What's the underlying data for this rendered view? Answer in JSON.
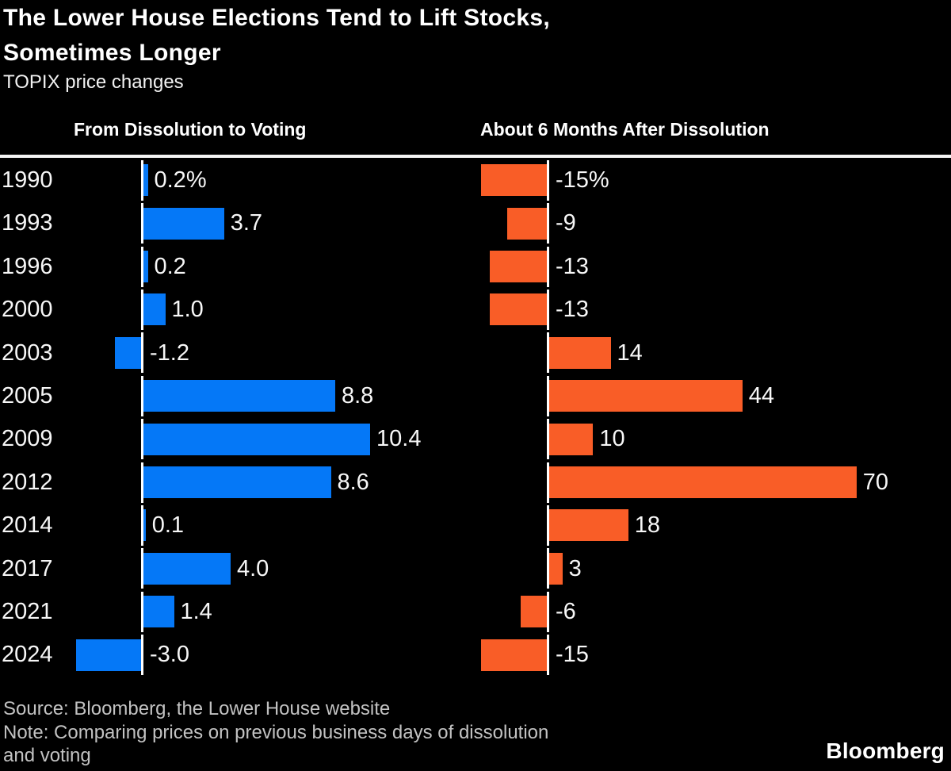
{
  "header": {
    "title_lines": [
      "The Lower House Elections Tend to Lift Stocks,",
      "Sometimes Longer"
    ],
    "subtitle": "TOPIX price changes"
  },
  "chart_data": {
    "type": "bar",
    "orientation": "horizontal",
    "title": "The Lower House Elections Tend to Lift Stocks, Sometimes Longer",
    "subtitle": "TOPIX price changes",
    "unit": "percent",
    "categories": [
      "1990",
      "1993",
      "1996",
      "2000",
      "2003",
      "2005",
      "2009",
      "2012",
      "2014",
      "2017",
      "2021",
      "2024"
    ],
    "series": [
      {
        "name": "From Dissolution to Voting",
        "color": "#0578f7",
        "values": [
          0.2,
          3.7,
          0.2,
          1.0,
          -1.2,
          8.8,
          10.4,
          8.6,
          0.1,
          4.0,
          1.4,
          -3.0
        ],
        "labels": [
          "0.2%",
          "3.7",
          "0.2",
          "1.0",
          "-1.2",
          "8.8",
          "10.4",
          "8.6",
          "0.1",
          "4.0",
          "1.4",
          "-3.0"
        ]
      },
      {
        "name": "About 6 Months After Dissolution",
        "color": "#f95d27",
        "values": [
          -15,
          -9,
          -13,
          -13,
          14,
          44,
          10,
          70,
          18,
          3,
          -6,
          -15
        ],
        "labels": [
          "-15%",
          "-9",
          "-13",
          "-13",
          "14",
          "44",
          "10",
          "70",
          "18",
          "3",
          "-6",
          "-15"
        ]
      }
    ],
    "layout": {
      "legend": "none",
      "grid": false,
      "value_labels": "outside-end",
      "zero_axis_lines": true,
      "left_panel_value_range": [
        -3.0,
        10.4
      ],
      "right_panel_value_range": [
        -15,
        70
      ]
    }
  },
  "footer": {
    "source": "Source: Bloomberg, the Lower House website",
    "note_lines": [
      "Note: Comparing prices on previous business days of dissolution",
      "and voting"
    ],
    "brand": "Bloomberg"
  },
  "colors": {
    "background": "#000000",
    "blue_bar": "#0578f7",
    "orange_bar": "#f95d27",
    "text": "#ffffff",
    "muted_text": "#c2c2c2",
    "rule": "#f5f5f5"
  }
}
